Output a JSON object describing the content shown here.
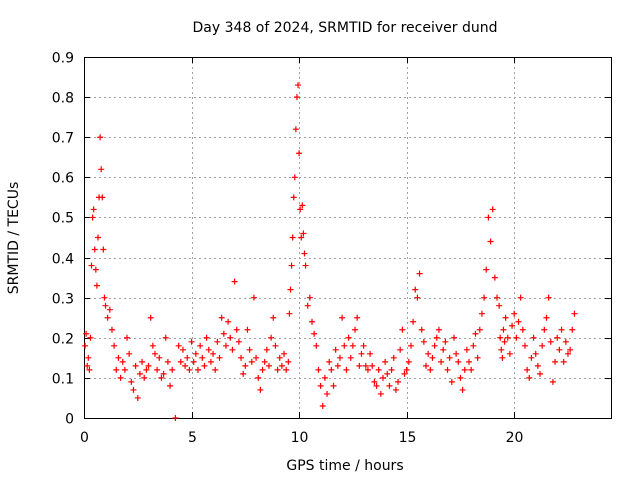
{
  "chart_data": {
    "type": "scatter",
    "title": "Day 348 of 2024, SRMTID for receiver dund",
    "xlabel": "GPS time / hours",
    "ylabel": "SRMTID / TECUs",
    "xlim": [
      0,
      24.5
    ],
    "ylim": [
      0,
      0.9
    ],
    "xticks": [
      0,
      5,
      10,
      15,
      20
    ],
    "yticks": [
      0,
      0.1,
      0.2,
      0.3,
      0.4,
      0.5,
      0.6,
      0.7,
      0.8,
      0.9
    ],
    "xtick_labels": [
      "0",
      "5",
      "10",
      "15",
      "20"
    ],
    "ytick_labels": [
      "0",
      "0.1",
      "0.2",
      "0.3",
      "0.4",
      "0.5",
      "0.6",
      "0.7",
      "0.8",
      "0.9"
    ],
    "grid": true,
    "marker": "+",
    "color": "#ff0000",
    "series": [
      {
        "name": "SRMTID",
        "x": [
          0.05,
          0.1,
          0.15,
          0.2,
          0.25,
          0.3,
          0.35,
          0.4,
          0.45,
          0.5,
          0.55,
          0.6,
          0.65,
          0.7,
          0.75,
          0.8,
          0.85,
          0.9,
          0.95,
          1.0,
          1.1,
          1.2,
          1.3,
          1.4,
          1.5,
          1.6,
          1.7,
          1.8,
          1.9,
          2.0,
          2.1,
          2.2,
          2.3,
          2.4,
          2.5,
          2.6,
          2.7,
          2.8,
          2.9,
          3.0,
          3.1,
          3.2,
          3.3,
          3.4,
          3.5,
          3.6,
          3.7,
          3.8,
          3.9,
          4.0,
          4.1,
          4.25,
          4.4,
          4.5,
          4.6,
          4.7,
          4.8,
          4.9,
          5.0,
          5.1,
          5.2,
          5.3,
          5.4,
          5.5,
          5.6,
          5.7,
          5.8,
          5.9,
          6.0,
          6.1,
          6.2,
          6.3,
          6.4,
          6.5,
          6.6,
          6.7,
          6.8,
          6.9,
          7.0,
          7.1,
          7.2,
          7.3,
          7.4,
          7.5,
          7.6,
          7.7,
          7.8,
          7.9,
          8.0,
          8.1,
          8.2,
          8.3,
          8.4,
          8.5,
          8.6,
          8.7,
          8.8,
          8.9,
          9.0,
          9.1,
          9.2,
          9.3,
          9.4,
          9.5,
          9.55,
          9.6,
          9.65,
          9.7,
          9.75,
          9.8,
          9.85,
          9.9,
          9.95,
          10.0,
          10.05,
          10.1,
          10.15,
          10.2,
          10.25,
          10.3,
          10.4,
          10.5,
          10.6,
          10.7,
          10.8,
          10.9,
          11.0,
          11.1,
          11.2,
          11.3,
          11.4,
          11.5,
          11.6,
          11.7,
          11.8,
          11.9,
          12.0,
          12.1,
          12.2,
          12.3,
          12.4,
          12.5,
          12.6,
          12.7,
          12.8,
          12.9,
          13.0,
          13.1,
          13.2,
          13.3,
          13.4,
          13.5,
          13.6,
          13.7,
          13.8,
          13.9,
          14.0,
          14.1,
          14.2,
          14.3,
          14.4,
          14.5,
          14.6,
          14.7,
          14.8,
          14.9,
          15.0,
          15.1,
          15.2,
          15.3,
          15.4,
          15.5,
          15.6,
          15.7,
          15.8,
          15.9,
          16.0,
          16.1,
          16.2,
          16.3,
          16.4,
          16.5,
          16.6,
          16.7,
          16.8,
          16.9,
          17.0,
          17.1,
          17.2,
          17.3,
          17.4,
          17.5,
          17.6,
          17.7,
          17.8,
          17.9,
          18.0,
          18.1,
          18.2,
          18.3,
          18.4,
          18.5,
          18.6,
          18.7,
          18.8,
          18.9,
          19.0,
          19.1,
          19.2,
          19.3,
          19.35,
          19.4,
          19.45,
          19.5,
          19.55,
          19.6,
          19.7,
          19.8,
          19.9,
          20.0,
          20.1,
          20.2,
          20.3,
          20.4,
          20.5,
          20.6,
          20.7,
          20.8,
          20.9,
          21.0,
          21.1,
          21.2,
          21.3,
          21.4,
          21.5,
          21.6,
          21.7,
          21.8,
          21.9,
          22.0,
          22.1,
          22.2,
          22.3,
          22.4,
          22.5,
          22.6,
          22.7,
          22.8
        ],
        "y": [
          0.18,
          0.21,
          0.13,
          0.15,
          0.12,
          0.2,
          0.38,
          0.5,
          0.52,
          0.42,
          0.37,
          0.33,
          0.45,
          0.55,
          0.7,
          0.62,
          0.55,
          0.42,
          0.3,
          0.28,
          0.25,
          0.27,
          0.22,
          0.18,
          0.12,
          0.15,
          0.1,
          0.14,
          0.12,
          0.2,
          0.16,
          0.09,
          0.07,
          0.13,
          0.05,
          0.11,
          0.14,
          0.1,
          0.12,
          0.13,
          0.25,
          0.18,
          0.16,
          0.12,
          0.15,
          0.1,
          0.11,
          0.2,
          0.14,
          0.08,
          0.12,
          0.0,
          0.18,
          0.14,
          0.17,
          0.13,
          0.15,
          0.12,
          0.19,
          0.14,
          0.16,
          0.12,
          0.18,
          0.15,
          0.13,
          0.2,
          0.17,
          0.14,
          0.16,
          0.12,
          0.19,
          0.15,
          0.25,
          0.21,
          0.18,
          0.24,
          0.2,
          0.17,
          0.34,
          0.22,
          0.19,
          0.15,
          0.11,
          0.13,
          0.22,
          0.17,
          0.14,
          0.3,
          0.15,
          0.1,
          0.07,
          0.12,
          0.14,
          0.17,
          0.13,
          0.2,
          0.25,
          0.18,
          0.12,
          0.15,
          0.13,
          0.16,
          0.12,
          0.14,
          0.26,
          0.32,
          0.38,
          0.45,
          0.55,
          0.6,
          0.72,
          0.8,
          0.83,
          0.66,
          0.52,
          0.45,
          0.53,
          0.46,
          0.41,
          0.38,
          0.28,
          0.3,
          0.24,
          0.21,
          0.18,
          0.12,
          0.08,
          0.03,
          0.1,
          0.06,
          0.14,
          0.12,
          0.08,
          0.17,
          0.13,
          0.15,
          0.25,
          0.18,
          0.12,
          0.2,
          0.15,
          0.18,
          0.22,
          0.25,
          0.13,
          0.16,
          0.18,
          0.13,
          0.12,
          0.16,
          0.13,
          0.09,
          0.08,
          0.12,
          0.06,
          0.1,
          0.14,
          0.11,
          0.08,
          0.12,
          0.15,
          0.07,
          0.09,
          0.17,
          0.22,
          0.11,
          0.12,
          0.14,
          0.18,
          0.24,
          0.32,
          0.3,
          0.36,
          0.22,
          0.19,
          0.13,
          0.16,
          0.12,
          0.15,
          0.18,
          0.2,
          0.22,
          0.14,
          0.17,
          0.19,
          0.12,
          0.15,
          0.09,
          0.2,
          0.16,
          0.14,
          0.1,
          0.07,
          0.12,
          0.17,
          0.14,
          0.12,
          0.18,
          0.21,
          0.15,
          0.22,
          0.26,
          0.3,
          0.37,
          0.5,
          0.44,
          0.52,
          0.35,
          0.3,
          0.28,
          0.2,
          0.17,
          0.15,
          0.22,
          0.19,
          0.25,
          0.2,
          0.16,
          0.23,
          0.26,
          0.2,
          0.24,
          0.3,
          0.22,
          0.18,
          0.12,
          0.1,
          0.15,
          0.2,
          0.16,
          0.13,
          0.11,
          0.18,
          0.22,
          0.25,
          0.3,
          0.19,
          0.09,
          0.14,
          0.2,
          0.17,
          0.22,
          0.14,
          0.19,
          0.16,
          0.17,
          0.22,
          0.26
        ]
      }
    ]
  }
}
